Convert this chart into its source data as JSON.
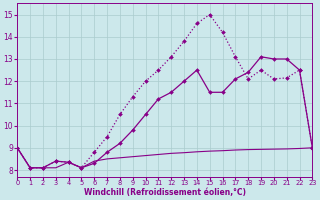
{
  "bg_color": "#cce8eb",
  "grid_color": "#aaccce",
  "line_color": "#880088",
  "xlabel": "Windchill (Refroidissement éolien,°C)",
  "xlim": [
    0,
    23
  ],
  "ylim": [
    7.7,
    15.5
  ],
  "xticks": [
    0,
    1,
    2,
    3,
    4,
    5,
    6,
    7,
    8,
    9,
    10,
    11,
    12,
    13,
    14,
    15,
    16,
    17,
    18,
    19,
    20,
    21,
    22,
    23
  ],
  "yticks": [
    8,
    9,
    10,
    11,
    12,
    13,
    14,
    15
  ],
  "series": [
    {
      "x": [
        0,
        1,
        2,
        3,
        4,
        5,
        6,
        7,
        8,
        9,
        10,
        11,
        12,
        13,
        14,
        15,
        16,
        17,
        18,
        19,
        20,
        21,
        22,
        23
      ],
      "y": [
        9.0,
        8.1,
        8.1,
        8.1,
        8.35,
        8.1,
        8.4,
        8.5,
        8.55,
        8.6,
        8.65,
        8.7,
        8.75,
        8.78,
        8.82,
        8.85,
        8.87,
        8.9,
        8.92,
        8.93,
        8.94,
        8.95,
        8.97,
        9.0
      ],
      "marker": false,
      "lw": 0.8,
      "style": "solid"
    },
    {
      "x": [
        0,
        1,
        2,
        3,
        4,
        5,
        6,
        7,
        8,
        9,
        10,
        11,
        12,
        13,
        14,
        15,
        16,
        17,
        18,
        19,
        20,
        21,
        22,
        23
      ],
      "y": [
        9.0,
        8.1,
        8.1,
        8.4,
        8.35,
        8.1,
        8.3,
        8.8,
        9.2,
        9.8,
        10.5,
        11.2,
        11.5,
        12.0,
        12.5,
        11.5,
        11.5,
        12.1,
        12.4,
        13.1,
        13.0,
        13.0,
        12.5,
        9.0
      ],
      "marker": true,
      "lw": 0.9,
      "style": "solid"
    },
    {
      "x": [
        0,
        1,
        2,
        3,
        4,
        5,
        6,
        7,
        8,
        9,
        10,
        11,
        12,
        13,
        14,
        15,
        16,
        17,
        18,
        19,
        20,
        21,
        22,
        23
      ],
      "y": [
        9.0,
        8.1,
        8.1,
        8.4,
        8.35,
        8.1,
        8.8,
        9.5,
        10.5,
        11.3,
        12.0,
        12.5,
        13.1,
        13.8,
        14.6,
        15.0,
        14.2,
        13.1,
        12.1,
        12.5,
        12.1,
        12.15,
        12.5,
        9.0
      ],
      "marker": true,
      "lw": 0.9,
      "style": "dotted"
    }
  ]
}
